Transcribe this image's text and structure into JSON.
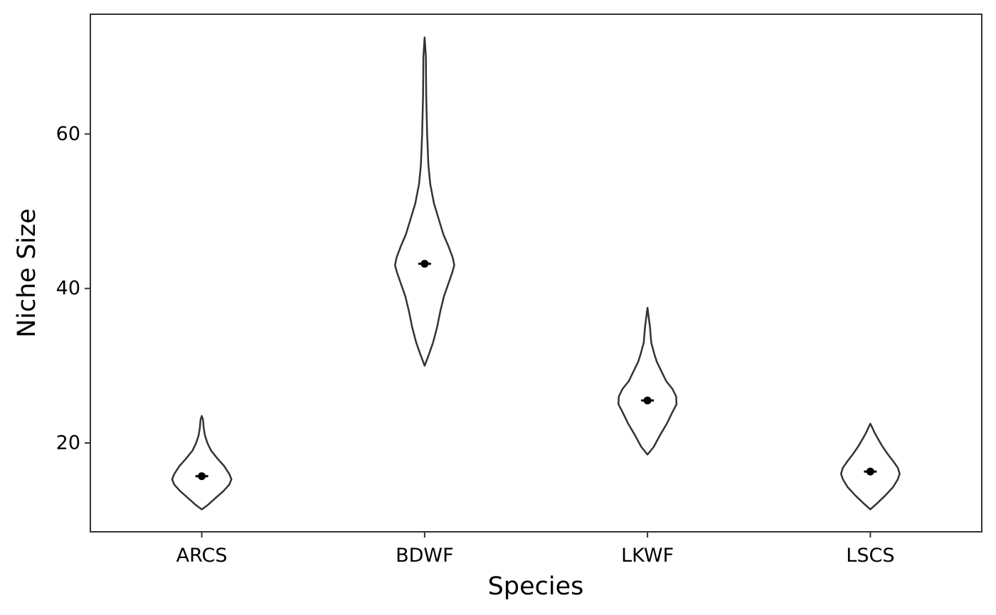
{
  "chart_data": {
    "type": "violin",
    "title": "",
    "xlabel": "Species",
    "ylabel": "Niche Size",
    "categories": [
      "ARCS",
      "BDWF",
      "LKWF",
      "LSCS"
    ],
    "ylim": [
      8.5,
      75.5
    ],
    "yticks": [
      20,
      40,
      60
    ],
    "ytick_labels": [
      "20",
      "40",
      "60"
    ],
    "grid": false,
    "legend": "none",
    "colors": {
      "outline": "#333333",
      "point": "#000000",
      "panel_border": "#333333",
      "background": "#ffffff"
    },
    "series": [
      {
        "category": "ARCS",
        "min": 11.4,
        "max": 23.5,
        "mean": 15.7,
        "profile": [
          [
            11.4,
            0.0
          ],
          [
            12.0,
            0.2
          ],
          [
            12.8,
            0.42
          ],
          [
            13.8,
            0.7
          ],
          [
            14.6,
            0.88
          ],
          [
            15.3,
            0.95
          ],
          [
            16.0,
            0.88
          ],
          [
            17.0,
            0.72
          ],
          [
            18.0,
            0.5
          ],
          [
            19.0,
            0.3
          ],
          [
            20.0,
            0.18
          ],
          [
            21.0,
            0.1
          ],
          [
            22.0,
            0.06
          ],
          [
            23.0,
            0.04
          ],
          [
            23.5,
            0.0
          ]
        ]
      },
      {
        "category": "BDWF",
        "min": 30.0,
        "max": 72.5,
        "mean": 43.2,
        "profile": [
          [
            30.0,
            0.0
          ],
          [
            31.5,
            0.14
          ],
          [
            33.0,
            0.27
          ],
          [
            35.0,
            0.4
          ],
          [
            37.0,
            0.5
          ],
          [
            39.0,
            0.62
          ],
          [
            40.5,
            0.75
          ],
          [
            42.0,
            0.88
          ],
          [
            43.0,
            0.95
          ],
          [
            44.0,
            0.9
          ],
          [
            45.5,
            0.76
          ],
          [
            47.0,
            0.6
          ],
          [
            49.0,
            0.45
          ],
          [
            51.0,
            0.3
          ],
          [
            53.5,
            0.18
          ],
          [
            56.0,
            0.12
          ],
          [
            60.0,
            0.08
          ],
          [
            65.0,
            0.05
          ],
          [
            70.0,
            0.04
          ],
          [
            72.5,
            0.0
          ]
        ]
      },
      {
        "category": "LKWF",
        "min": 18.5,
        "max": 37.5,
        "mean": 25.5,
        "profile": [
          [
            18.5,
            0.0
          ],
          [
            19.5,
            0.2
          ],
          [
            21.0,
            0.4
          ],
          [
            22.5,
            0.62
          ],
          [
            24.0,
            0.8
          ],
          [
            25.0,
            0.93
          ],
          [
            26.0,
            0.92
          ],
          [
            27.0,
            0.8
          ],
          [
            28.0,
            0.6
          ],
          [
            29.5,
            0.42
          ],
          [
            30.5,
            0.3
          ],
          [
            31.5,
            0.22
          ],
          [
            33.0,
            0.12
          ],
          [
            35.0,
            0.08
          ],
          [
            37.5,
            0.0
          ]
        ]
      },
      {
        "category": "LSCS",
        "min": 11.4,
        "max": 22.5,
        "mean": 16.3,
        "profile": [
          [
            11.4,
            0.0
          ],
          [
            12.2,
            0.22
          ],
          [
            13.2,
            0.48
          ],
          [
            14.3,
            0.73
          ],
          [
            15.3,
            0.88
          ],
          [
            16.0,
            0.94
          ],
          [
            16.8,
            0.88
          ],
          [
            17.6,
            0.74
          ],
          [
            18.6,
            0.55
          ],
          [
            19.6,
            0.38
          ],
          [
            20.5,
            0.25
          ],
          [
            21.3,
            0.14
          ],
          [
            22.0,
            0.06
          ],
          [
            22.5,
            0.0
          ]
        ]
      }
    ]
  }
}
